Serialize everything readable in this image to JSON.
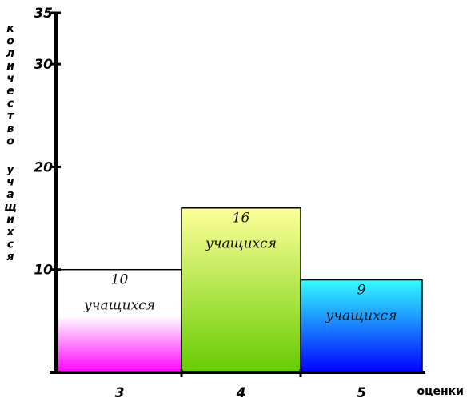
{
  "chart_data": {
    "type": "bar",
    "categories": [
      "3",
      "4",
      "5"
    ],
    "values": [
      10,
      16,
      9
    ],
    "bar_labels": [
      [
        "10",
        "учащихся"
      ],
      [
        "16",
        "учащихся"
      ],
      [
        "9",
        "учащихся"
      ]
    ],
    "bar_gradients": [
      [
        "#ffffff",
        "#ff00ff"
      ],
      [
        "#ffff99",
        "#66cc00"
      ],
      [
        "#33ffff",
        "#0000ff"
      ]
    ],
    "yticks": [
      10,
      20,
      30,
      35
    ],
    "ytick_labels": [
      "10",
      "20",
      "30",
      "35"
    ],
    "ylim": [
      0,
      35
    ],
    "ylabel": "количество учащихся",
    "ylabel_lines": [
      [
        "к",
        "о",
        "л",
        "и",
        "ч",
        "е",
        "с",
        "т",
        "в",
        "о"
      ],
      [
        "у",
        "ч",
        "а",
        "щ",
        "и",
        "х",
        "с",
        "я"
      ]
    ],
    "xlabel": "оценки",
    "grid": false,
    "legend": false
  }
}
